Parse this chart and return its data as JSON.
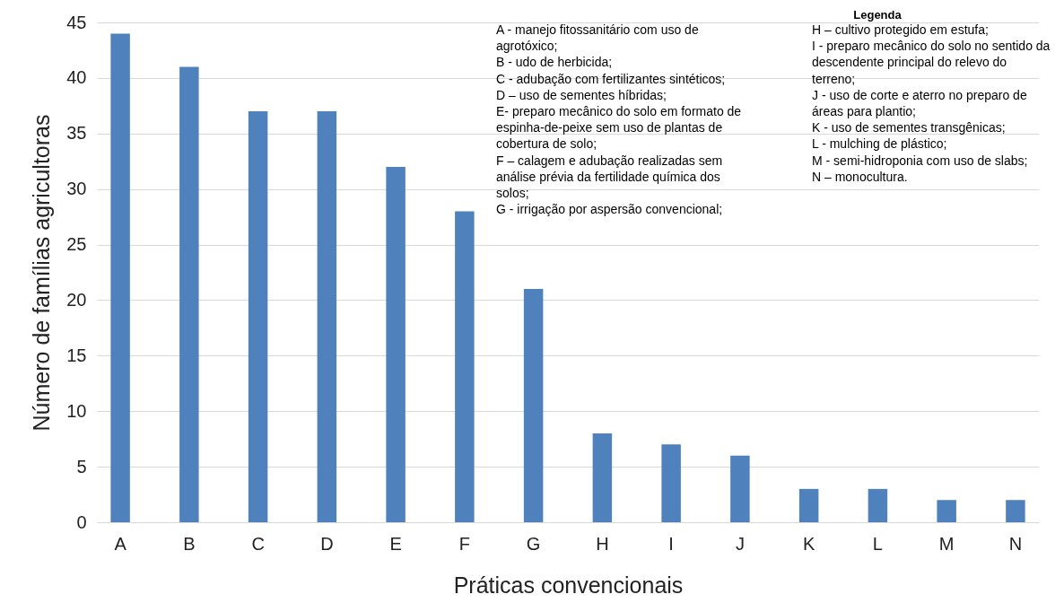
{
  "chart_data": {
    "type": "bar",
    "xlabel": "Práticas convencionais",
    "ylabel": "Número de famílias agricultoras",
    "categories": [
      "A",
      "B",
      "C",
      "D",
      "E",
      "F",
      "G",
      "H",
      "I",
      "J",
      "K",
      "L",
      "M",
      "N"
    ],
    "values": [
      44,
      41,
      37,
      37,
      32,
      28,
      21,
      8,
      7,
      6,
      3,
      3,
      2,
      2
    ],
    "color": "#4f81bd",
    "ylim": [
      0,
      45
    ],
    "yticks": [
      0,
      5,
      10,
      15,
      20,
      25,
      30,
      35,
      40,
      45
    ],
    "grid": "y",
    "annotations": [
      "Legenda",
      "A - manejo fitossanitário com uso de agrotóxico;",
      "B - udo de herbicida;",
      "C - adubação com fertilizantes sintéticos;",
      "D – uso de sementes híbridas;",
      "E- preparo mecânico do solo em formato de espinha-de-peixe sem uso de plantas de cobertura de solo;",
      "F – calagem e adubação realizadas sem análise prévia da fertilidade química dos solos;",
      "G - irrigação por aspersão convencional;",
      "H – cultivo protegido em estufa;",
      "I - preparo mecânico do solo no sentido da descendente principal do relevo do terreno;",
      "J - uso de corte e aterro no preparo de áreas para plantio;",
      "K - uso de sementes transgênicas;",
      "L - mulching de plástico;",
      "M - semi-hidroponia com uso de slabs;",
      "N – monocultura."
    ]
  }
}
